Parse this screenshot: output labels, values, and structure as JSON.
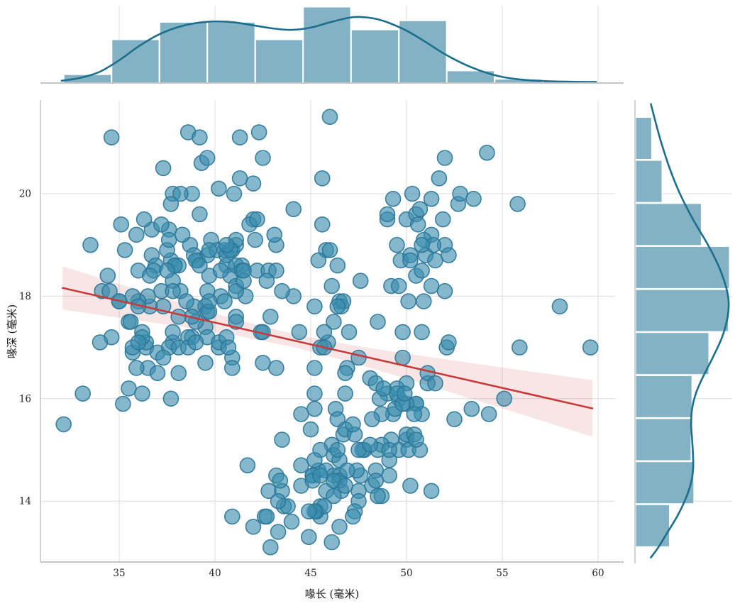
{
  "figure": {
    "background": "#ffffff"
  },
  "chart_data": {
    "type": "scatter",
    "subtype": "jointplot-regression-with-marginal-histograms",
    "title": "",
    "xlabel": "喙长 (毫米)",
    "ylabel": "喙深 (毫米)",
    "xlim": [
      30.9,
      61.0
    ],
    "ylim": [
      12.8,
      21.85
    ],
    "x_ticks": [
      35,
      40,
      45,
      50,
      55,
      60
    ],
    "y_ticks": [
      14,
      16,
      18,
      20
    ],
    "grid": true,
    "legend_position": "none",
    "points": [
      [
        39.1,
        18.7
      ],
      [
        39.5,
        17.4
      ],
      [
        40.3,
        18.0
      ],
      [
        36.7,
        19.3
      ],
      [
        39.3,
        20.6
      ],
      [
        38.9,
        17.8
      ],
      [
        39.2,
        19.6
      ],
      [
        34.1,
        18.1
      ],
      [
        42.0,
        20.2
      ],
      [
        37.8,
        17.1
      ],
      [
        37.8,
        17.3
      ],
      [
        41.1,
        17.6
      ],
      [
        38.6,
        21.2
      ],
      [
        34.6,
        21.1
      ],
      [
        36.6,
        17.8
      ],
      [
        38.7,
        19.0
      ],
      [
        42.5,
        20.7
      ],
      [
        34.4,
        18.4
      ],
      [
        46.0,
        21.5
      ],
      [
        37.8,
        18.3
      ],
      [
        37.7,
        18.7
      ],
      [
        35.9,
        19.2
      ],
      [
        38.2,
        18.1
      ],
      [
        38.8,
        17.2
      ],
      [
        35.3,
        18.9
      ],
      [
        40.6,
        18.6
      ],
      [
        40.5,
        17.9
      ],
      [
        37.9,
        18.6
      ],
      [
        40.5,
        18.9
      ],
      [
        39.5,
        16.7
      ],
      [
        37.2,
        18.1
      ],
      [
        39.5,
        17.8
      ],
      [
        40.9,
        18.9
      ],
      [
        36.4,
        17.0
      ],
      [
        39.2,
        21.1
      ],
      [
        38.8,
        20.0
      ],
      [
        42.2,
        18.5
      ],
      [
        37.6,
        19.3
      ],
      [
        39.8,
        19.1
      ],
      [
        36.5,
        18.0
      ],
      [
        40.8,
        18.4
      ],
      [
        36.0,
        18.5
      ],
      [
        44.1,
        19.7
      ],
      [
        37.0,
        16.9
      ],
      [
        39.6,
        18.8
      ],
      [
        41.1,
        19.0
      ],
      [
        37.5,
        18.9
      ],
      [
        36.0,
        17.9
      ],
      [
        42.3,
        21.2
      ],
      [
        39.6,
        17.7
      ],
      [
        40.1,
        18.9
      ],
      [
        35.0,
        17.9
      ],
      [
        42.0,
        19.5
      ],
      [
        34.5,
        18.1
      ],
      [
        41.4,
        18.6
      ],
      [
        39.0,
        17.5
      ],
      [
        40.6,
        18.8
      ],
      [
        36.5,
        16.6
      ],
      [
        37.6,
        19.1
      ],
      [
        35.7,
        16.9
      ],
      [
        41.3,
        21.1
      ],
      [
        37.6,
        17.0
      ],
      [
        41.1,
        18.2
      ],
      [
        36.4,
        17.1
      ],
      [
        41.6,
        18.0
      ],
      [
        35.5,
        16.2
      ],
      [
        41.1,
        19.1
      ],
      [
        35.9,
        16.6
      ],
      [
        41.8,
        19.4
      ],
      [
        33.5,
        19.0
      ],
      [
        39.7,
        18.4
      ],
      [
        39.6,
        17.2
      ],
      [
        45.8,
        18.9
      ],
      [
        35.5,
        17.5
      ],
      [
        42.8,
        18.5
      ],
      [
        40.9,
        16.8
      ],
      [
        37.2,
        19.4
      ],
      [
        36.2,
        16.1
      ],
      [
        42.1,
        19.1
      ],
      [
        34.6,
        17.2
      ],
      [
        42.9,
        17.6
      ],
      [
        36.7,
        18.8
      ],
      [
        35.1,
        19.4
      ],
      [
        37.3,
        17.8
      ],
      [
        41.3,
        20.3
      ],
      [
        36.3,
        19.5
      ],
      [
        36.9,
        18.6
      ],
      [
        38.3,
        19.2
      ],
      [
        38.9,
        18.8
      ],
      [
        35.7,
        18.0
      ],
      [
        41.1,
        18.1
      ],
      [
        34.0,
        17.1
      ],
      [
        39.6,
        18.1
      ],
      [
        36.2,
        17.3
      ],
      [
        40.8,
        18.9
      ],
      [
        38.1,
        18.6
      ],
      [
        40.3,
        18.5
      ],
      [
        33.1,
        16.1
      ],
      [
        43.2,
        18.5
      ],
      [
        35.0,
        17.9
      ],
      [
        41.0,
        20.0
      ],
      [
        37.7,
        16.0
      ],
      [
        37.8,
        20.0
      ],
      [
        37.9,
        18.6
      ],
      [
        39.7,
        18.9
      ],
      [
        38.6,
        17.2
      ],
      [
        38.2,
        20.0
      ],
      [
        38.1,
        17.0
      ],
      [
        43.2,
        19.0
      ],
      [
        38.1,
        16.5
      ],
      [
        45.6,
        20.3
      ],
      [
        39.7,
        17.7
      ],
      [
        42.2,
        19.5
      ],
      [
        39.6,
        20.7
      ],
      [
        42.7,
        18.3
      ],
      [
        38.6,
        17.0
      ],
      [
        37.3,
        20.5
      ],
      [
        35.7,
        17.0
      ],
      [
        41.1,
        18.6
      ],
      [
        36.2,
        17.2
      ],
      [
        37.7,
        19.8
      ],
      [
        40.2,
        17.0
      ],
      [
        41.4,
        18.5
      ],
      [
        35.2,
        15.9
      ],
      [
        40.6,
        19.0
      ],
      [
        38.8,
        17.6
      ],
      [
        41.5,
        18.3
      ],
      [
        39.0,
        17.1
      ],
      [
        44.1,
        18.0
      ],
      [
        38.5,
        17.9
      ],
      [
        43.1,
        19.2
      ],
      [
        36.8,
        18.5
      ],
      [
        37.5,
        18.5
      ],
      [
        38.1,
        17.6
      ],
      [
        41.1,
        17.5
      ],
      [
        35.6,
        17.5
      ],
      [
        40.2,
        20.1
      ],
      [
        37.0,
        16.5
      ],
      [
        39.7,
        17.9
      ],
      [
        40.2,
        17.1
      ],
      [
        40.6,
        17.2
      ],
      [
        32.1,
        15.5
      ],
      [
        40.7,
        17.0
      ],
      [
        37.3,
        16.8
      ],
      [
        39.0,
        18.7
      ],
      [
        39.2,
        18.6
      ],
      [
        36.6,
        18.4
      ],
      [
        36.0,
        17.8
      ],
      [
        37.8,
        18.1
      ],
      [
        36.0,
        17.1
      ],
      [
        41.5,
        18.5
      ],
      [
        46.5,
        17.9
      ],
      [
        50.0,
        19.5
      ],
      [
        51.3,
        19.2
      ],
      [
        45.4,
        18.7
      ],
      [
        52.7,
        19.8
      ],
      [
        45.2,
        17.8
      ],
      [
        46.1,
        18.2
      ],
      [
        51.3,
        18.2
      ],
      [
        46.0,
        18.9
      ],
      [
        51.3,
        19.9
      ],
      [
        46.6,
        17.8
      ],
      [
        51.7,
        20.3
      ],
      [
        47.0,
        17.3
      ],
      [
        52.0,
        18.1
      ],
      [
        45.9,
        17.1
      ],
      [
        50.5,
        19.6
      ],
      [
        50.3,
        20.0
      ],
      [
        58.0,
        17.8
      ],
      [
        46.4,
        18.6
      ],
      [
        49.2,
        18.2
      ],
      [
        42.4,
        17.3
      ],
      [
        48.5,
        17.5
      ],
      [
        43.2,
        16.6
      ],
      [
        50.6,
        19.4
      ],
      [
        46.7,
        17.9
      ],
      [
        52.0,
        19.0
      ],
      [
        50.5,
        18.4
      ],
      [
        49.5,
        19.0
      ],
      [
        46.4,
        17.8
      ],
      [
        52.8,
        20.0
      ],
      [
        40.9,
        16.6
      ],
      [
        54.2,
        20.8
      ],
      [
        42.5,
        16.7
      ],
      [
        51.0,
        18.8
      ],
      [
        49.7,
        18.7
      ],
      [
        47.5,
        16.8
      ],
      [
        47.6,
        18.3
      ],
      [
        52.0,
        20.7
      ],
      [
        46.9,
        16.6
      ],
      [
        53.5,
        19.9
      ],
      [
        49.0,
        19.5
      ],
      [
        46.2,
        17.5
      ],
      [
        50.9,
        19.1
      ],
      [
        45.5,
        17.0
      ],
      [
        50.9,
        17.9
      ],
      [
        50.8,
        18.5
      ],
      [
        50.1,
        17.9
      ],
      [
        49.0,
        19.6
      ],
      [
        51.5,
        18.7
      ],
      [
        49.8,
        17.3
      ],
      [
        48.1,
        16.4
      ],
      [
        51.4,
        19.0
      ],
      [
        45.7,
        17.3
      ],
      [
        50.7,
        19.7
      ],
      [
        42.5,
        17.3
      ],
      [
        52.2,
        18.8
      ],
      [
        45.2,
        16.6
      ],
      [
        49.3,
        19.9
      ],
      [
        50.2,
        18.8
      ],
      [
        45.6,
        19.4
      ],
      [
        51.9,
        19.5
      ],
      [
        46.8,
        16.5
      ],
      [
        45.7,
        17.0
      ],
      [
        55.8,
        19.8
      ],
      [
        43.5,
        18.1
      ],
      [
        49.6,
        18.2
      ],
      [
        50.8,
        19.0
      ],
      [
        50.2,
        18.7
      ],
      [
        46.1,
        13.2
      ],
      [
        50.0,
        16.3
      ],
      [
        48.7,
        14.1
      ],
      [
        50.0,
        15.2
      ],
      [
        47.6,
        14.5
      ],
      [
        46.5,
        13.5
      ],
      [
        45.4,
        14.6
      ],
      [
        46.7,
        15.3
      ],
      [
        43.3,
        13.4
      ],
      [
        46.8,
        15.4
      ],
      [
        40.9,
        13.7
      ],
      [
        49.0,
        16.1
      ],
      [
        45.5,
        13.7
      ],
      [
        48.4,
        14.6
      ],
      [
        45.8,
        14.6
      ],
      [
        49.3,
        15.7
      ],
      [
        42.0,
        13.5
      ],
      [
        49.2,
        15.2
      ],
      [
        46.2,
        14.5
      ],
      [
        48.7,
        15.1
      ],
      [
        50.2,
        14.3
      ],
      [
        45.1,
        14.5
      ],
      [
        46.5,
        14.5
      ],
      [
        46.3,
        15.8
      ],
      [
        42.9,
        13.1
      ],
      [
        46.1,
        15.1
      ],
      [
        44.5,
        14.3
      ],
      [
        47.8,
        15.0
      ],
      [
        48.2,
        14.3
      ],
      [
        50.0,
        15.3
      ],
      [
        47.3,
        15.3
      ],
      [
        42.8,
        14.2
      ],
      [
        45.1,
        14.5
      ],
      [
        59.6,
        17.0
      ],
      [
        49.1,
        14.8
      ],
      [
        48.4,
        16.3
      ],
      [
        42.6,
        13.7
      ],
      [
        44.4,
        17.3
      ],
      [
        44.0,
        13.6
      ],
      [
        48.7,
        15.7
      ],
      [
        42.7,
        13.7
      ],
      [
        49.6,
        16.0
      ],
      [
        45.3,
        13.8
      ],
      [
        49.6,
        15.0
      ],
      [
        50.5,
        15.9
      ],
      [
        43.6,
        13.9
      ],
      [
        45.5,
        13.9
      ],
      [
        50.5,
        15.9
      ],
      [
        44.9,
        13.3
      ],
      [
        45.2,
        15.8
      ],
      [
        46.6,
        14.2
      ],
      [
        48.5,
        14.1
      ],
      [
        45.1,
        14.4
      ],
      [
        50.1,
        15.0
      ],
      [
        46.5,
        14.4
      ],
      [
        45.0,
        15.4
      ],
      [
        43.8,
        13.9
      ],
      [
        45.5,
        15.0
      ],
      [
        43.2,
        14.5
      ],
      [
        50.4,
        15.3
      ],
      [
        45.3,
        13.8
      ],
      [
        46.2,
        14.9
      ],
      [
        45.7,
        13.9
      ],
      [
        54.3,
        15.7
      ],
      [
        45.8,
        14.2
      ],
      [
        49.8,
        16.8
      ],
      [
        46.2,
        14.4
      ],
      [
        49.5,
        16.2
      ],
      [
        43.5,
        14.2
      ],
      [
        50.7,
        15.0
      ],
      [
        47.7,
        15.0
      ],
      [
        46.4,
        15.6
      ],
      [
        48.2,
        15.6
      ],
      [
        46.5,
        14.8
      ],
      [
        46.4,
        15.0
      ],
      [
        48.6,
        16.0
      ],
      [
        47.5,
        14.2
      ],
      [
        51.1,
        16.3
      ],
      [
        45.2,
        13.8
      ],
      [
        45.2,
        16.1
      ],
      [
        49.1,
        14.5
      ],
      [
        52.5,
        15.6
      ],
      [
        47.4,
        14.6
      ],
      [
        50.0,
        15.9
      ],
      [
        44.9,
        13.8
      ],
      [
        50.8,
        17.3
      ],
      [
        43.4,
        14.4
      ],
      [
        51.3,
        14.2
      ],
      [
        47.5,
        14.0
      ],
      [
        52.1,
        17.0
      ],
      [
        47.5,
        15.0
      ],
      [
        52.2,
        17.1
      ],
      [
        45.5,
        14.5
      ],
      [
        49.5,
        16.1
      ],
      [
        44.5,
        14.7
      ],
      [
        50.8,
        15.7
      ],
      [
        49.4,
        15.8
      ],
      [
        46.9,
        14.6
      ],
      [
        48.4,
        14.4
      ],
      [
        51.1,
        16.5
      ],
      [
        48.5,
        15.0
      ],
      [
        55.9,
        17.0
      ],
      [
        47.2,
        15.5
      ],
      [
        49.1,
        15.0
      ],
      [
        47.3,
        13.8
      ],
      [
        46.8,
        16.1
      ],
      [
        41.7,
        14.7
      ],
      [
        53.4,
        15.8
      ],
      [
        43.3,
        14.0
      ],
      [
        48.1,
        15.1
      ],
      [
        50.5,
        15.2
      ],
      [
        49.8,
        15.9
      ],
      [
        43.5,
        15.2
      ],
      [
        51.5,
        16.3
      ],
      [
        46.2,
        14.1
      ],
      [
        55.1,
        16.0
      ],
      [
        44.5,
        15.7
      ],
      [
        48.8,
        16.2
      ],
      [
        47.2,
        13.7
      ],
      [
        46.8,
        14.3
      ],
      [
        50.4,
        15.7
      ],
      [
        45.2,
        14.8
      ],
      [
        49.9,
        16.1
      ]
    ],
    "regression": {
      "slope": -0.085,
      "intercept": 20.885,
      "x_start": 32.05,
      "x_end": 59.7,
      "ci_x": [
        32.05,
        35,
        38,
        41,
        44,
        47,
        50,
        53,
        56,
        58,
        59.7
      ],
      "ci_half_width": [
        0.423,
        0.329,
        0.239,
        0.163,
        0.13,
        0.167,
        0.245,
        0.336,
        0.431,
        0.497,
        0.553
      ]
    },
    "marginal_top_hist": {
      "variable": "喙长 (毫米)",
      "bin_start": 32.1,
      "bin_width": 2.5,
      "heights_norm": [
        0.11,
        0.57,
        0.8,
        0.8,
        0.57,
        1.0,
        0.7,
        0.82,
        0.16,
        0.05,
        0.02
      ],
      "kde_norm": [
        [
          32.0,
          0.03
        ],
        [
          33.0,
          0.07
        ],
        [
          34.0,
          0.15
        ],
        [
          35.0,
          0.3
        ],
        [
          36.0,
          0.48
        ],
        [
          37.0,
          0.63
        ],
        [
          38.0,
          0.73
        ],
        [
          39.0,
          0.79
        ],
        [
          40.0,
          0.81
        ],
        [
          41.0,
          0.8
        ],
        [
          42.0,
          0.76
        ],
        [
          43.0,
          0.72
        ],
        [
          44.0,
          0.7
        ],
        [
          45.0,
          0.73
        ],
        [
          46.0,
          0.8
        ],
        [
          47.0,
          0.86
        ],
        [
          47.6,
          0.87
        ],
        [
          48.3,
          0.85
        ],
        [
          49.0,
          0.8
        ],
        [
          50.0,
          0.69
        ],
        [
          51.0,
          0.54
        ],
        [
          52.0,
          0.38
        ],
        [
          53.0,
          0.25
        ],
        [
          54.0,
          0.15
        ],
        [
          55.0,
          0.08
        ],
        [
          56.0,
          0.045
        ],
        [
          57.0,
          0.028
        ],
        [
          58.0,
          0.02
        ],
        [
          59.0,
          0.015
        ],
        [
          59.9,
          0.013
        ]
      ]
    },
    "marginal_right_hist": {
      "variable": "喙深 (毫米)",
      "bin_start": 13.1,
      "bin_width": 0.84,
      "lengths_norm": [
        0.36,
        0.62,
        0.59,
        0.6,
        0.78,
        0.99,
        1.0,
        0.7,
        0.28,
        0.17
      ],
      "kde_norm": [
        [
          21.75,
          0.17
        ],
        [
          21.4,
          0.22
        ],
        [
          21.0,
          0.28
        ],
        [
          20.5,
          0.37
        ],
        [
          20.0,
          0.48
        ],
        [
          19.5,
          0.62
        ],
        [
          19.0,
          0.78
        ],
        [
          18.6,
          0.89
        ],
        [
          18.2,
          0.97
        ],
        [
          17.9,
          1.0
        ],
        [
          17.6,
          0.99
        ],
        [
          17.2,
          0.93
        ],
        [
          16.8,
          0.83
        ],
        [
          16.4,
          0.72
        ],
        [
          16.1,
          0.65
        ],
        [
          15.8,
          0.61
        ],
        [
          15.5,
          0.6
        ],
        [
          15.2,
          0.61
        ],
        [
          14.9,
          0.62
        ],
        [
          14.6,
          0.62
        ],
        [
          14.3,
          0.59
        ],
        [
          14.0,
          0.53
        ],
        [
          13.7,
          0.45
        ],
        [
          13.4,
          0.35
        ],
        [
          13.1,
          0.25
        ],
        [
          12.9,
          0.17
        ]
      ]
    },
    "colors": {
      "scatter_fill": "#3a8caf",
      "scatter_edge": "#2b7697",
      "hist_fill": "#82b2c4",
      "hist_edge": "#ffffff",
      "kde_line": "#1d6e8c",
      "regression_line": "#c73a3a",
      "ci_fill": "#c73a3a",
      "grid": "#dcdcdc",
      "spine": "#c6c6c6",
      "tick_label": "#262626"
    }
  }
}
